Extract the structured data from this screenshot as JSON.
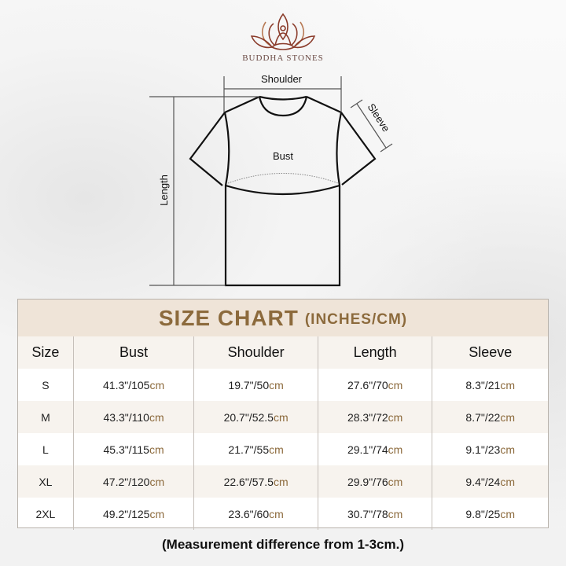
{
  "brand": {
    "name": "BUDDHA STONES",
    "logo_icon": "lotus-meditation-logo",
    "color": "#8a3b2a"
  },
  "diagram": {
    "shoulder": "Shoulder",
    "sleeve": "Sleeve",
    "bust": "Bust",
    "length": "Length"
  },
  "table": {
    "title": "SIZE CHART",
    "unit": "(INCHES/CM)",
    "headers": [
      "Size",
      "Bust",
      "Shoulder",
      "Length",
      "Sleeve"
    ],
    "rows": [
      {
        "size": "S",
        "values": [
          [
            "41.3\"/105",
            "cm"
          ],
          [
            "19.7\"/50",
            "cm"
          ],
          [
            "27.6\"/70",
            "cm"
          ],
          [
            "8.3\"/21",
            "cm"
          ]
        ]
      },
      {
        "size": "M",
        "values": [
          [
            "43.3\"/110",
            "cm"
          ],
          [
            "20.7\"/52.5",
            "cm"
          ],
          [
            "28.3\"/72",
            "cm"
          ],
          [
            "8.7\"/22",
            "cm"
          ]
        ]
      },
      {
        "size": "L",
        "values": [
          [
            "45.3\"/115",
            "cm"
          ],
          [
            "21.7\"/55",
            "cm"
          ],
          [
            "29.1\"/74",
            "cm"
          ],
          [
            "9.1\"/23",
            "cm"
          ]
        ]
      },
      {
        "size": "XL",
        "values": [
          [
            "47.2\"/120",
            "cm"
          ],
          [
            "22.6\"/57.5",
            "cm"
          ],
          [
            "29.9\"/76",
            "cm"
          ],
          [
            "9.4\"/24",
            "cm"
          ]
        ]
      },
      {
        "size": "2XL",
        "values": [
          [
            "49.2\"/125",
            "cm"
          ],
          [
            "23.6\"/60",
            "cm"
          ],
          [
            "30.7\"/78",
            "cm"
          ],
          [
            "9.8\"/25",
            "cm"
          ]
        ]
      }
    ],
    "accent": "#8c6a3c",
    "title_bg": "#efe4d8"
  },
  "note": "(Measurement difference from 1-3cm.)"
}
